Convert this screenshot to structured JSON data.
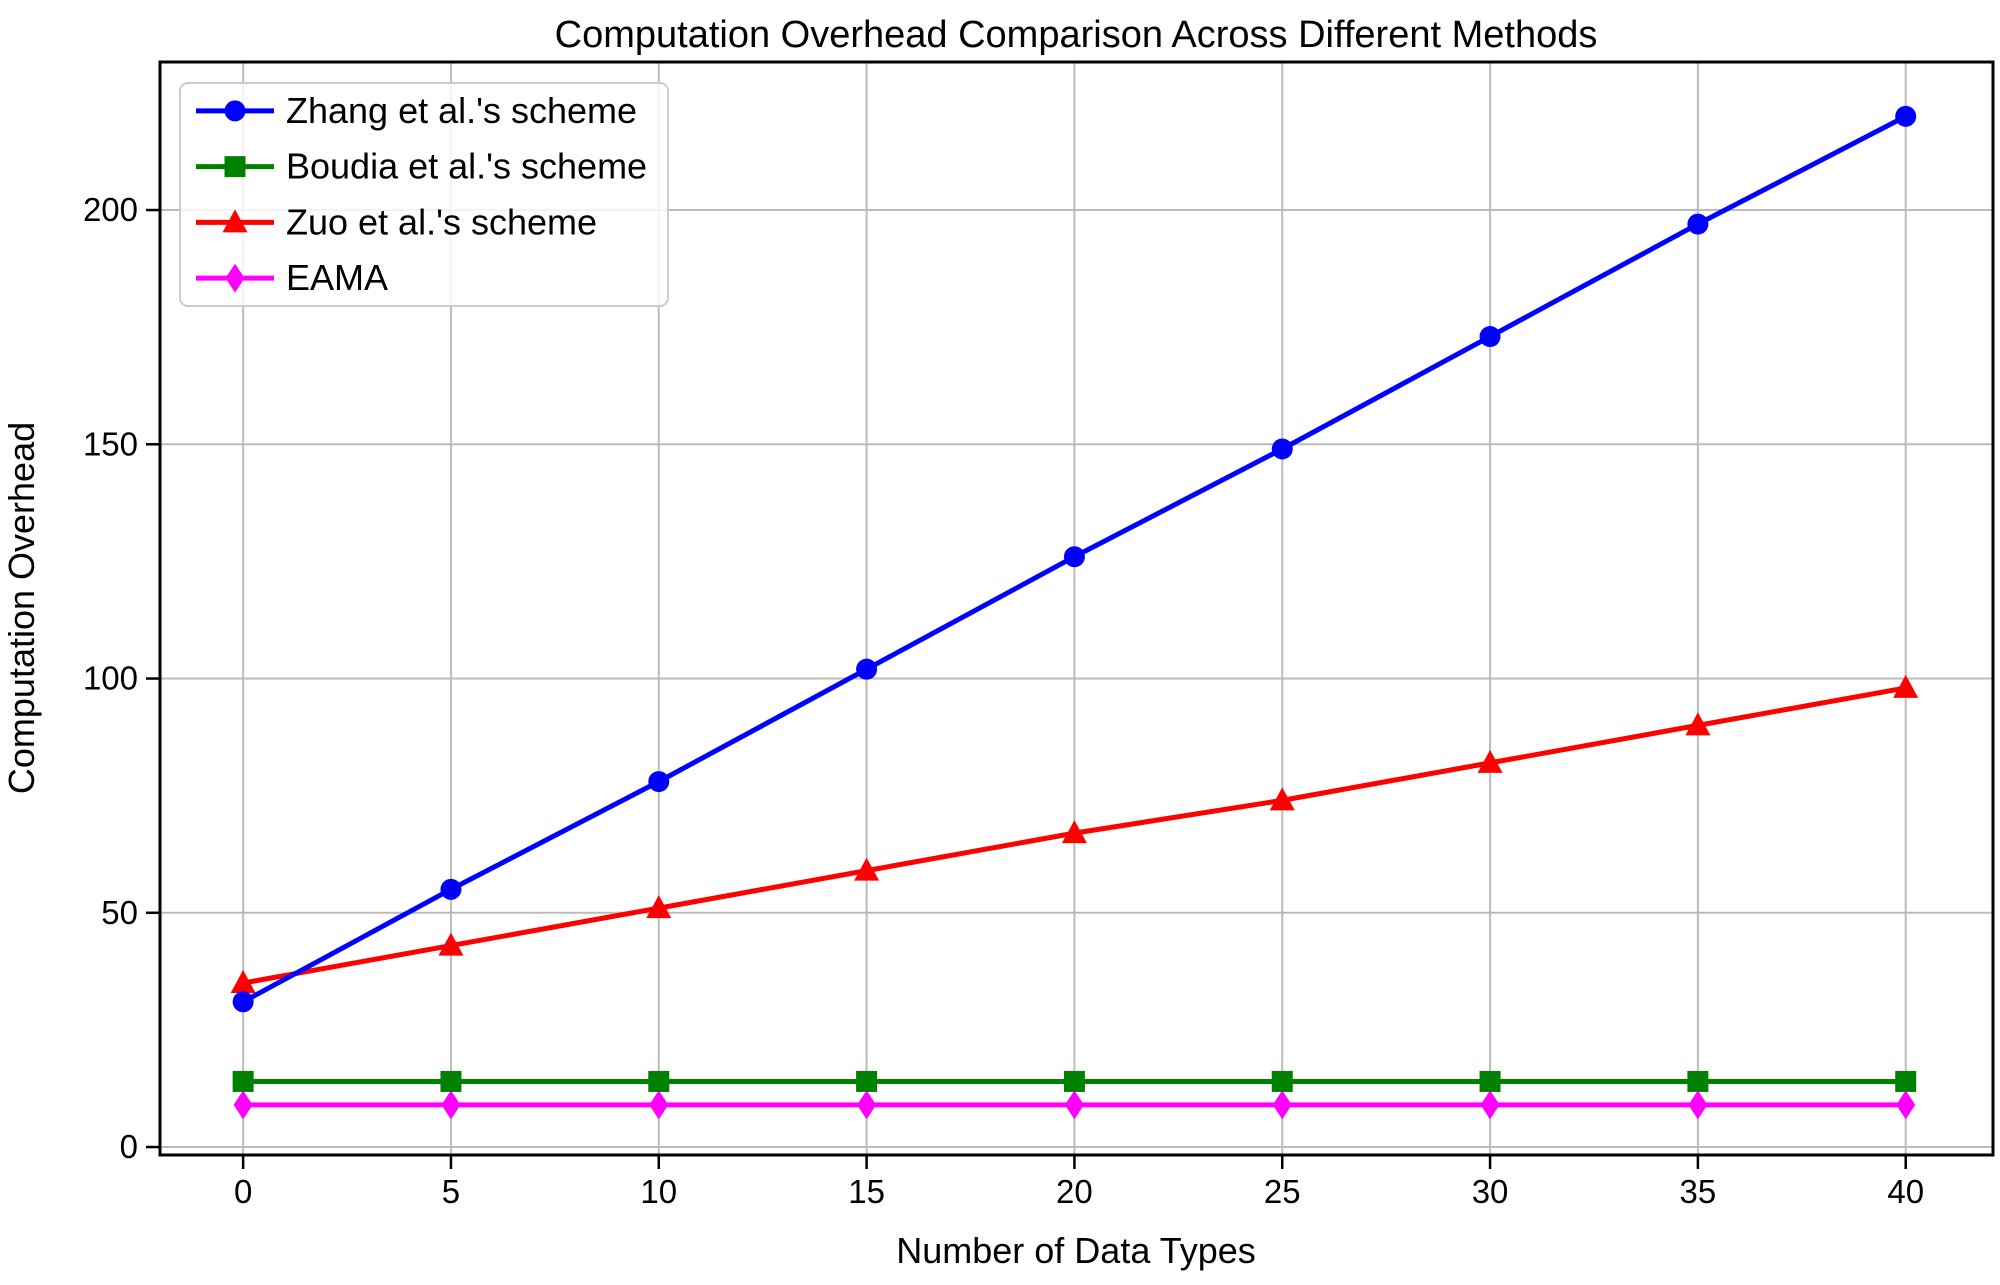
{
  "chart_data": {
    "type": "line",
    "title": "Computation Overhead Comparison Across Different Methods",
    "xlabel": "Number of Data Types",
    "ylabel": "Computation Overhead",
    "grid": true,
    "legend_position": "upper-left",
    "background_color": "#ffffff",
    "grid_color": "#bbbbbb",
    "spine_color": "#000000",
    "x": [
      0,
      5,
      10,
      15,
      20,
      25,
      30,
      35,
      40
    ],
    "xticks": [
      0,
      5,
      10,
      15,
      20,
      25,
      30,
      35,
      40
    ],
    "yticks": [
      0,
      50,
      100,
      150,
      200
    ],
    "xlim": [
      -2,
      42.1
    ],
    "ylim": [
      -1.7,
      231.6
    ],
    "series": [
      {
        "name": "Zhang et al.'s scheme",
        "color": "#0000ff",
        "marker": "circle",
        "values": [
          31,
          55,
          78,
          102,
          126,
          149,
          173,
          197,
          220
        ]
      },
      {
        "name": "Boudia et al.'s scheme",
        "color": "#008000",
        "marker": "square",
        "values": [
          14,
          14,
          14,
          14,
          14,
          14,
          14,
          14,
          14
        ]
      },
      {
        "name": "Zuo et al.'s scheme",
        "color": "#ff0000",
        "marker": "triangle",
        "values": [
          35,
          43,
          51,
          59,
          67,
          74,
          82,
          90,
          98
        ]
      },
      {
        "name": "EAMA",
        "color": "#ff00ff",
        "marker": "diamond",
        "values": [
          9,
          9,
          9,
          9,
          9,
          9,
          9,
          9,
          9
        ]
      }
    ]
  }
}
